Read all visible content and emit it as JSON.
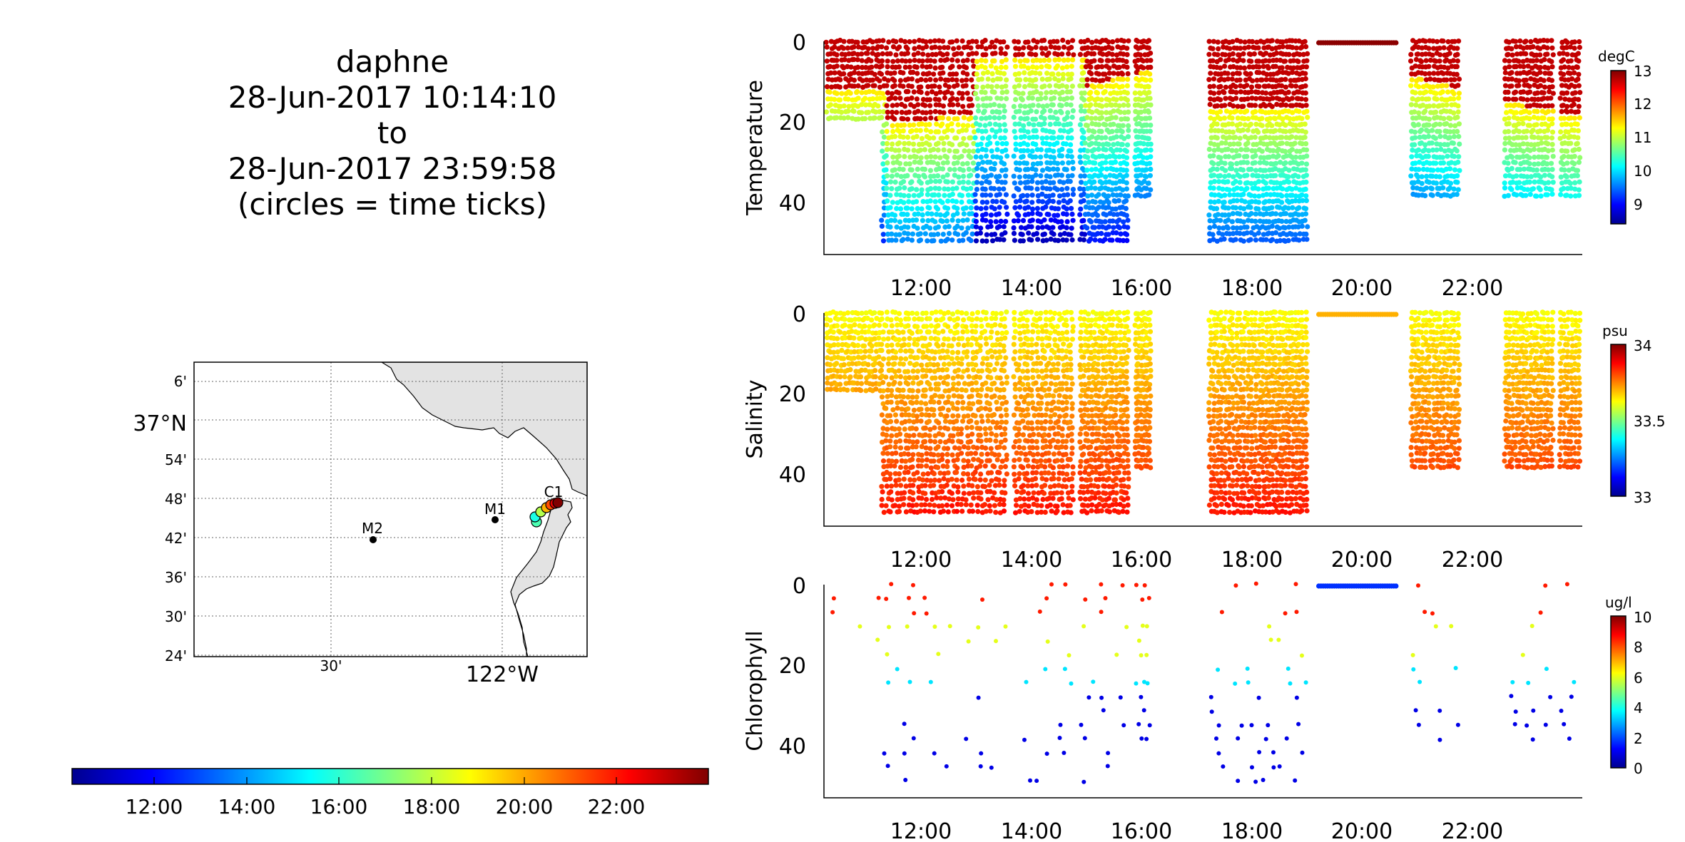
{
  "title": {
    "line1": "daphne",
    "line2": "28-Jun-2017 10:14:10",
    "line3": "to",
    "line4": "28-Jun-2017 23:59:58",
    "line5": "(circles = time ticks)"
  },
  "colors": {
    "land": "#e3e3e3",
    "jet": [
      "#00008f",
      "#0000ff",
      "#0080ff",
      "#00ffff",
      "#80ff80",
      "#ffff00",
      "#ff8000",
      "#ff0000",
      "#800000"
    ]
  },
  "map": {
    "ylabels": [
      "6'",
      "37°N",
      "54'",
      "48'",
      "42'",
      "36'",
      "30'",
      "24'"
    ],
    "xlabels": [
      "30'",
      "122°W"
    ],
    "stations": [
      {
        "name": "M2"
      },
      {
        "name": "M1"
      },
      {
        "name": "C1"
      }
    ]
  },
  "time_colorbar": {
    "ticks": [
      "12:00",
      "14:00",
      "16:00",
      "18:00",
      "20:00",
      "22:00"
    ]
  },
  "chart_data": [
    {
      "type": "scatter",
      "ylabel": "Temperature",
      "unit": "degC",
      "x_ticks": [
        "12:00",
        "14:00",
        "16:00",
        "18:00",
        "20:00",
        "22:00"
      ],
      "x_range": [
        "10:14",
        "24:00"
      ],
      "y_ticks": [
        "0",
        "20",
        "40"
      ],
      "y_range": [
        0,
        53
      ],
      "y_reversed": true,
      "colorbar_ticks": [
        "13",
        "12",
        "11",
        "10",
        "9"
      ],
      "color_range": [
        8.6,
        13.2
      ],
      "grid": false
    },
    {
      "type": "scatter",
      "ylabel": "Salinity",
      "unit": "psu",
      "x_ticks": [
        "12:00",
        "14:00",
        "16:00",
        "18:00",
        "20:00",
        "22:00"
      ],
      "x_range": [
        "10:14",
        "24:00"
      ],
      "y_ticks": [
        "0",
        "20",
        "40"
      ],
      "y_range": [
        0,
        53
      ],
      "y_reversed": true,
      "colorbar_ticks": [
        "34",
        "33.5",
        "33"
      ],
      "color_range": [
        33,
        34
      ],
      "grid": false
    },
    {
      "type": "scatter",
      "ylabel": "Chlorophyll",
      "unit": "ug/l",
      "x_ticks": [
        "12:00",
        "14:00",
        "16:00",
        "18:00",
        "20:00",
        "22:00"
      ],
      "x_range": [
        "10:14",
        "24:00"
      ],
      "y_ticks": [
        "0",
        "20",
        "40"
      ],
      "y_range": [
        0,
        53
      ],
      "y_reversed": true,
      "colorbar_ticks": [
        "10",
        "8",
        "6",
        "4",
        "2",
        "0"
      ],
      "color_range": [
        0,
        10
      ],
      "grid": false
    }
  ]
}
